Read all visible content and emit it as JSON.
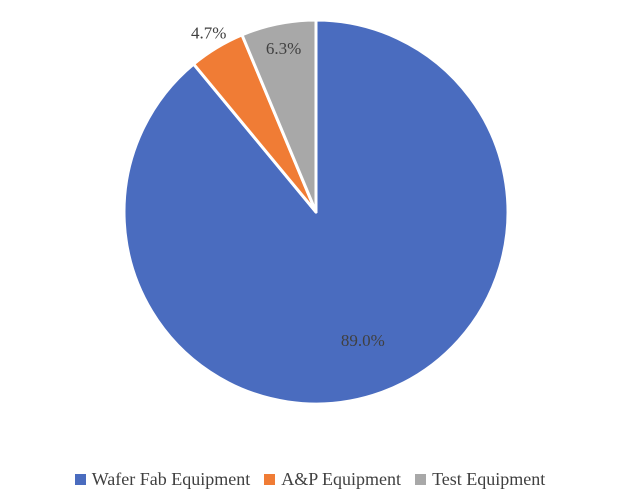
{
  "chart_data": {
    "type": "pie",
    "categories": [
      "Wafer Fab Equipment",
      "A&P Equipment",
      "Test Equipment"
    ],
    "values": [
      89.0,
      4.7,
      6.3
    ],
    "data_labels": [
      "89.0%",
      "4.7%",
      "6.3%"
    ],
    "colors": [
      "#4a6cbf",
      "#f07c35",
      "#a8a8a8"
    ],
    "title": "",
    "legend_position": "bottom",
    "start_angle_deg": 0,
    "direction": "clockwise"
  }
}
